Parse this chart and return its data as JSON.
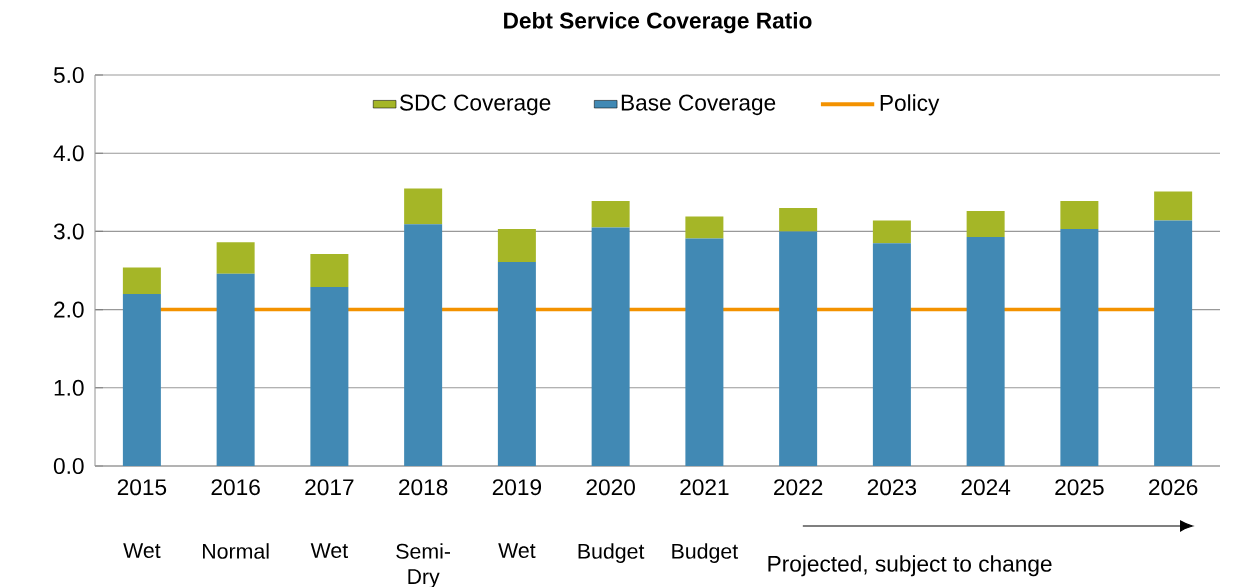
{
  "chart_data": {
    "type": "bar",
    "title": "Debt Service Coverage Ratio",
    "stacked": true,
    "categories": [
      "2015",
      "2016",
      "2017",
      "2018",
      "2019",
      "2020",
      "2021",
      "2022",
      "2023",
      "2024",
      "2025",
      "2026"
    ],
    "series": [
      {
        "name": "Base Coverage",
        "color": "#4189b4",
        "values": [
          2.2,
          2.46,
          2.29,
          3.09,
          2.61,
          3.05,
          2.91,
          3.0,
          2.85,
          2.93,
          3.03,
          3.14
        ]
      },
      {
        "name": "SDC Coverage",
        "color": "#a5b627",
        "values": [
          0.34,
          0.4,
          0.42,
          0.46,
          0.42,
          0.34,
          0.28,
          0.3,
          0.29,
          0.33,
          0.36,
          0.37
        ]
      }
    ],
    "ref_lines": [
      {
        "axis": "y",
        "value": 2.0,
        "label": "Policy",
        "color": "#f39200"
      }
    ],
    "ylim": [
      0,
      5
    ],
    "yticks": [
      {
        "value": 0,
        "label": "0.0"
      },
      {
        "value": 1,
        "label": "1.0"
      },
      {
        "value": 2,
        "label": "2.0"
      },
      {
        "value": 3,
        "label": "3.0"
      },
      {
        "value": 4,
        "label": "4.0"
      },
      {
        "value": 5,
        "label": "5.0"
      }
    ],
    "grid": "y",
    "legend": "top",
    "annotations": [
      "Wet",
      "Normal",
      "Wet",
      "Semi-Dry",
      "Wet",
      "Budget",
      "Budget",
      "Projected, subject to change"
    ]
  }
}
